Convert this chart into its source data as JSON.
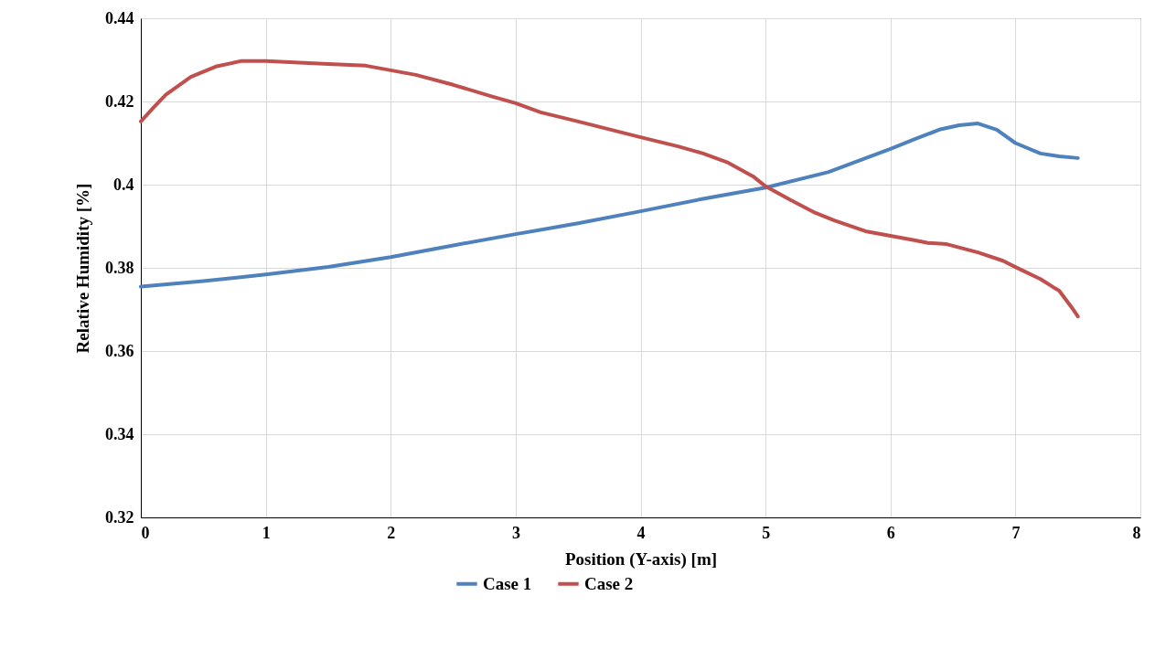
{
  "chart_data": {
    "type": "line",
    "xlabel": "Position (Y-axis) [m]",
    "ylabel": "Relative Humidity [%]",
    "xlim": [
      0,
      8
    ],
    "xticks": [
      0,
      1,
      2,
      3,
      4,
      5,
      6,
      7,
      8
    ],
    "ylim": [
      0.32,
      0.44
    ],
    "yticks": [
      0.32,
      0.34,
      0.36,
      0.38,
      0.4,
      0.42,
      0.44
    ],
    "grid": true,
    "legend": "bottom",
    "marker": "none",
    "line_style": "solid",
    "series": [
      {
        "name": "Case 1",
        "color": "#4f81bd",
        "x": [
          0,
          0.5,
          1,
          1.5,
          2,
          2.5,
          3,
          3.5,
          4,
          4.5,
          5,
          5.5,
          6,
          6.2,
          6.4,
          6.55,
          6.7,
          6.85,
          7,
          7.2,
          7.35,
          7.5
        ],
        "values": [
          0.3755,
          0.3768,
          0.3784,
          0.3802,
          0.3826,
          0.3854,
          0.3881,
          0.3907,
          0.3936,
          0.3966,
          0.3993,
          0.403,
          0.4086,
          0.411,
          0.4133,
          0.4143,
          0.4147,
          0.4132,
          0.41,
          0.4075,
          0.4068,
          0.4064
        ]
      },
      {
        "name": "Case 2",
        "color": "#c0504d",
        "x": [
          0,
          0.1,
          0.2,
          0.4,
          0.6,
          0.8,
          1,
          1.5,
          1.8,
          2,
          2.2,
          2.5,
          2.8,
          3,
          3.2,
          3.5,
          4,
          4.3,
          4.5,
          4.7,
          4.9,
          5,
          5.2,
          5.4,
          5.55,
          5.8,
          6,
          6.2,
          6.3,
          6.45,
          6.7,
          6.9,
          7,
          7.2,
          7.3,
          7.35,
          7.45,
          7.5
        ],
        "values": [
          0.4152,
          0.4185,
          0.4216,
          0.4259,
          0.4284,
          0.4297,
          0.4297,
          0.429,
          0.4286,
          0.4275,
          0.4264,
          0.424,
          0.4213,
          0.4196,
          0.4174,
          0.4152,
          0.4114,
          0.4092,
          0.4075,
          0.4053,
          0.402,
          0.3996,
          0.3963,
          0.3932,
          0.3914,
          0.3888,
          0.3877,
          0.3866,
          0.386,
          0.3857,
          0.3837,
          0.3817,
          0.3802,
          0.3773,
          0.3754,
          0.3745,
          0.3705,
          0.3683
        ]
      }
    ]
  }
}
